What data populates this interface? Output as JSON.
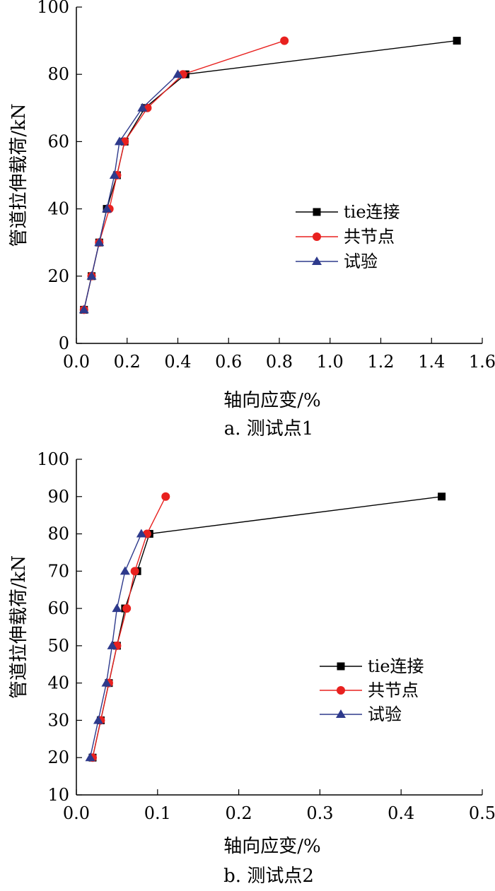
{
  "chart_data": [
    {
      "type": "line",
      "caption": "a. 测试点1",
      "xlabel": "轴向应变/%",
      "ylabel": "管道拉伸载荷/kN",
      "xlim": [
        0,
        1.6
      ],
      "ylim": [
        0,
        100
      ],
      "xticks": [
        "0.0",
        "0.2",
        "0.4",
        "0.6",
        "0.8",
        "1.0",
        "1.2",
        "1.4",
        "1.6"
      ],
      "yticks": [
        "0",
        "20",
        "40",
        "60",
        "80",
        "100"
      ],
      "grid": false,
      "legend_position": "center-right",
      "series": [
        {
          "name": "tie连接",
          "color": "#000000",
          "marker": "square",
          "x": [
            0.03,
            0.06,
            0.09,
            0.12,
            0.16,
            0.19,
            0.27,
            0.43,
            1.5
          ],
          "y": [
            10,
            20,
            30,
            40,
            50,
            60,
            70,
            80,
            90
          ]
        },
        {
          "name": "共节点",
          "color": "#e8211f",
          "marker": "circle",
          "x": [
            0.03,
            0.06,
            0.09,
            0.13,
            0.16,
            0.19,
            0.28,
            0.42,
            0.82
          ],
          "y": [
            10,
            20,
            30,
            40,
            50,
            60,
            70,
            80,
            90
          ]
        },
        {
          "name": "试验",
          "color": "#2e3a8c",
          "marker": "triangle",
          "x": [
            0.03,
            0.06,
            0.09,
            0.12,
            0.15,
            0.17,
            0.26,
            0.4
          ],
          "y": [
            10,
            20,
            30,
            40,
            50,
            60,
            70,
            80
          ]
        }
      ]
    },
    {
      "type": "line",
      "caption": "b. 测试点2",
      "xlabel": "轴向应变/%",
      "ylabel": "管道拉伸载荷/kN",
      "xlim": [
        0,
        0.5
      ],
      "ylim": [
        10,
        100
      ],
      "xticks": [
        "0.0",
        "0.1",
        "0.2",
        "0.3",
        "0.4",
        "0.5"
      ],
      "yticks": [
        "10",
        "20",
        "30",
        "40",
        "50",
        "60",
        "70",
        "80",
        "90",
        "100"
      ],
      "grid": false,
      "legend_position": "center-right",
      "series": [
        {
          "name": "tie连接",
          "color": "#000000",
          "marker": "square",
          "x": [
            0.02,
            0.03,
            0.04,
            0.05,
            0.06,
            0.075,
            0.09,
            0.45
          ],
          "y": [
            20,
            30,
            40,
            50,
            60,
            70,
            80,
            90
          ]
        },
        {
          "name": "共节点",
          "color": "#e8211f",
          "marker": "circle",
          "x": [
            0.02,
            0.03,
            0.04,
            0.05,
            0.062,
            0.072,
            0.087,
            0.11
          ],
          "y": [
            20,
            30,
            40,
            50,
            60,
            70,
            80,
            90
          ]
        },
        {
          "name": "试验",
          "color": "#2e3a8c",
          "marker": "triangle",
          "x": [
            0.017,
            0.027,
            0.037,
            0.044,
            0.05,
            0.06,
            0.08
          ],
          "y": [
            20,
            30,
            40,
            50,
            60,
            70,
            80
          ]
        }
      ]
    }
  ]
}
